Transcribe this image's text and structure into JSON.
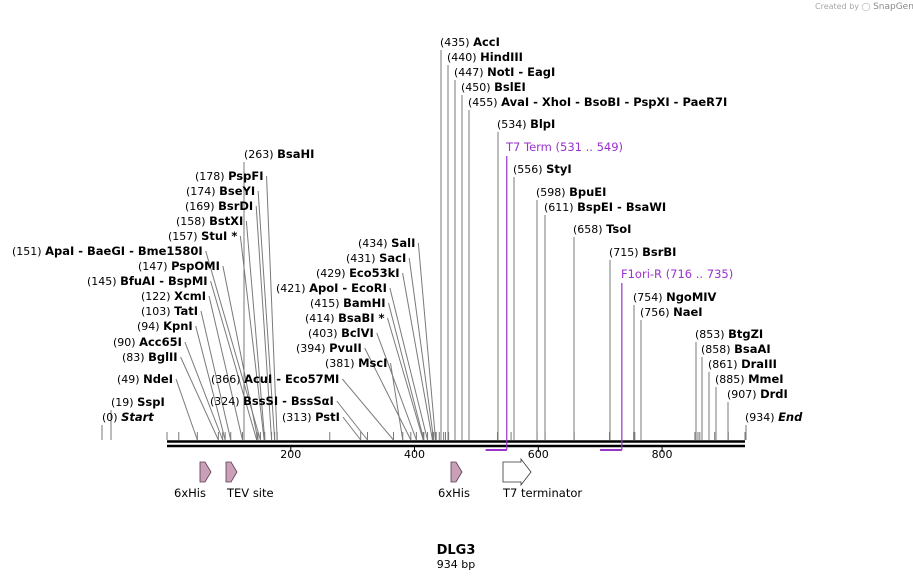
{
  "credit": {
    "prefix": "Created by",
    "brand": "SnapGene"
  },
  "title": "DLG3",
  "subtitle": "934 bp",
  "sequence_length": 934,
  "ticks": [
    {
      "bp": 200,
      "label": "200"
    },
    {
      "bp": 400,
      "label": "400"
    },
    {
      "bp": 600,
      "label": "600"
    },
    {
      "bp": 800,
      "label": "800"
    }
  ],
  "site_labels": [
    {
      "pos": "(0)",
      "name": "Start",
      "italic": true,
      "bp": 0
    },
    {
      "pos": "(19)",
      "name": "SspI",
      "bp": 19
    },
    {
      "pos": "(49)",
      "name": "NdeI",
      "bp": 49
    },
    {
      "pos": "(83)",
      "name": "BglII",
      "bp": 83
    },
    {
      "pos": "(90)",
      "name": "Acc65I",
      "bp": 90
    },
    {
      "pos": "(94)",
      "name": "KpnI",
      "bp": 94
    },
    {
      "pos": "(103)",
      "name": "TatI",
      "bp": 103
    },
    {
      "pos": "(122)",
      "name": "XcmI",
      "bp": 122
    },
    {
      "pos": "(145)",
      "name": "BfuAI  -  BspMI",
      "bp": 145
    },
    {
      "pos": "(147)",
      "name": "PspOMI",
      "bp": 147
    },
    {
      "pos": "(151)",
      "name": "ApaI  -  BaeGI  -  Bme1580I",
      "bp": 151
    },
    {
      "pos": "(157)",
      "name": "StuI *",
      "bp": 157
    },
    {
      "pos": "(158)",
      "name": "BstXI",
      "bp": 158
    },
    {
      "pos": "(169)",
      "name": "BsrDI",
      "bp": 169
    },
    {
      "pos": "(174)",
      "name": "BseYI",
      "bp": 174
    },
    {
      "pos": "(178)",
      "name": "PspFI",
      "bp": 178
    },
    {
      "pos": "(263)",
      "name": "BsaHI",
      "bp": 263
    },
    {
      "pos": "(313)",
      "name": "PstI",
      "bp": 313
    },
    {
      "pos": "(324)",
      "name": "BssSI  -  BssSαI",
      "bp": 324
    },
    {
      "pos": "(366)",
      "name": "AcuI  -  Eco57MI",
      "bp": 366
    },
    {
      "pos": "(381)",
      "name": "MscI",
      "bp": 381
    },
    {
      "pos": "(394)",
      "name": "PvuII",
      "bp": 394
    },
    {
      "pos": "(403)",
      "name": "BclVI",
      "bp": 403
    },
    {
      "pos": "(414)",
      "name": "BsaBI *",
      "bp": 414
    },
    {
      "pos": "(415)",
      "name": "BamHI",
      "bp": 415
    },
    {
      "pos": "(421)",
      "name": "ApoI  -  EcoRI",
      "bp": 421
    },
    {
      "pos": "(429)",
      "name": "Eco53kI",
      "bp": 429
    },
    {
      "pos": "(431)",
      "name": "SacI",
      "bp": 431
    },
    {
      "pos": "(434)",
      "name": "SalI",
      "bp": 434
    },
    {
      "pos": "(435)",
      "name": "AccI",
      "bp": 435
    },
    {
      "pos": "(440)",
      "name": "HindIII",
      "bp": 440
    },
    {
      "pos": "(447)",
      "name": "NotI  -  EagI",
      "bp": 447
    },
    {
      "pos": "(450)",
      "name": "BslEI",
      "bp": 450
    },
    {
      "pos": "(455)",
      "name": "AvaI  -  XhoI  -  BsoBI  -  PspXI  -  PaeR7I",
      "bp": 455
    },
    {
      "pos": "(534)",
      "name": "BlpI",
      "bp": 534
    },
    {
      "pos": "(556)",
      "name": "StyI",
      "bp": 556
    },
    {
      "pos": "(598)",
      "name": "BpuEI",
      "bp": 598
    },
    {
      "pos": "(611)",
      "name": "BspEI  -  BsaWI",
      "bp": 611
    },
    {
      "pos": "(658)",
      "name": "TsoI",
      "bp": 658
    },
    {
      "pos": "(715)",
      "name": "BsrBI",
      "bp": 715
    },
    {
      "pos": "(754)",
      "name": "NgoMIV",
      "bp": 754
    },
    {
      "pos": "(756)",
      "name": "NaeI",
      "bp": 756
    },
    {
      "pos": "(853)",
      "name": "BtgZI",
      "bp": 853
    },
    {
      "pos": "(858)",
      "name": "BsaAI",
      "bp": 858
    },
    {
      "pos": "(861)",
      "name": "DraIII",
      "bp": 861
    },
    {
      "pos": "(885)",
      "name": "MmeI",
      "bp": 885
    },
    {
      "pos": "(907)",
      "name": "DrdI",
      "bp": 907
    },
    {
      "pos": "(934)",
      "name": "End",
      "italic": true,
      "bp": 934
    }
  ],
  "primer_features": [
    {
      "name": "T7 Term",
      "range": "(531 .. 549)",
      "start": 531,
      "end": 549,
      "color": "#9a32cd"
    },
    {
      "name": "F1ori-R",
      "range": "(716 .. 735)",
      "start": 716,
      "end": 735,
      "color": "#9a32cd"
    }
  ],
  "features": [
    {
      "label": "6xHis",
      "bp": 49,
      "shape": "filled-arrow",
      "color": "#c9a0b8"
    },
    {
      "label": "TEV site",
      "bp": 90,
      "shape": "filled-arrow",
      "color": "#c9a0b8"
    },
    {
      "label": "6xHis",
      "bp": 456,
      "shape": "filled-arrow",
      "color": "#c9a0b8"
    },
    {
      "label": "T7 terminator",
      "bp": 542,
      "shape": "open-arrow",
      "color": "#ffffff"
    }
  ],
  "colors": {
    "backbone": "#000000",
    "leader": "#7a7a7a",
    "primer": "#9a32cd",
    "feature_fill": "#c9a0b8"
  }
}
